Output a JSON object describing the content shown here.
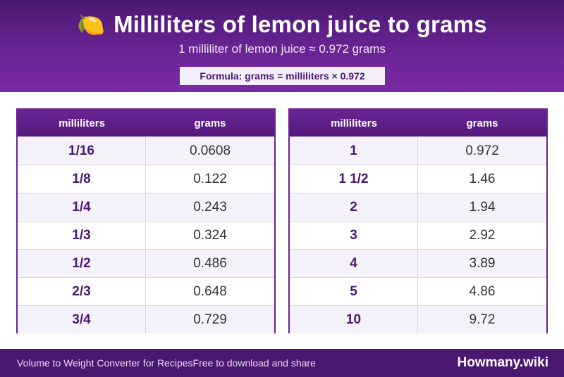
{
  "header": {
    "icon": "lemon-icon",
    "icon_glyph": "🍋",
    "title": "Milliliters of lemon juice to grams",
    "subtitle": "1 milliliter of lemon juice ≈ 0.972 grams",
    "formula": "Formula: grams = milliliters × 0.972"
  },
  "tables": {
    "left": {
      "col_ml": "milliliters",
      "col_g": "grams",
      "rows": [
        {
          "ml": "1/16",
          "g": "0.0608"
        },
        {
          "ml": "1/8",
          "g": "0.122"
        },
        {
          "ml": "1/4",
          "g": "0.243"
        },
        {
          "ml": "1/3",
          "g": "0.324"
        },
        {
          "ml": "1/2",
          "g": "0.486"
        },
        {
          "ml": "2/3",
          "g": "0.648"
        },
        {
          "ml": "3/4",
          "g": "0.729"
        }
      ]
    },
    "right": {
      "col_ml": "milliliters",
      "col_g": "grams",
      "rows": [
        {
          "ml": "1",
          "g": "0.972"
        },
        {
          "ml": "1 1/2",
          "g": "1.46"
        },
        {
          "ml": "2",
          "g": "1.94"
        },
        {
          "ml": "3",
          "g": "2.92"
        },
        {
          "ml": "4",
          "g": "3.89"
        },
        {
          "ml": "5",
          "g": "4.86"
        },
        {
          "ml": "10",
          "g": "9.72"
        }
      ]
    }
  },
  "footer": {
    "left_text_1": "Volume to Weight Converter for Recipes",
    "left_text_2": "Free to download and share",
    "brand": "Howmany.wiki"
  },
  "colors": {
    "header_dark": "#4a1870",
    "header_light": "#7a2aa6",
    "accent": "#6a2494",
    "row_alt": "#f6f2fb"
  }
}
